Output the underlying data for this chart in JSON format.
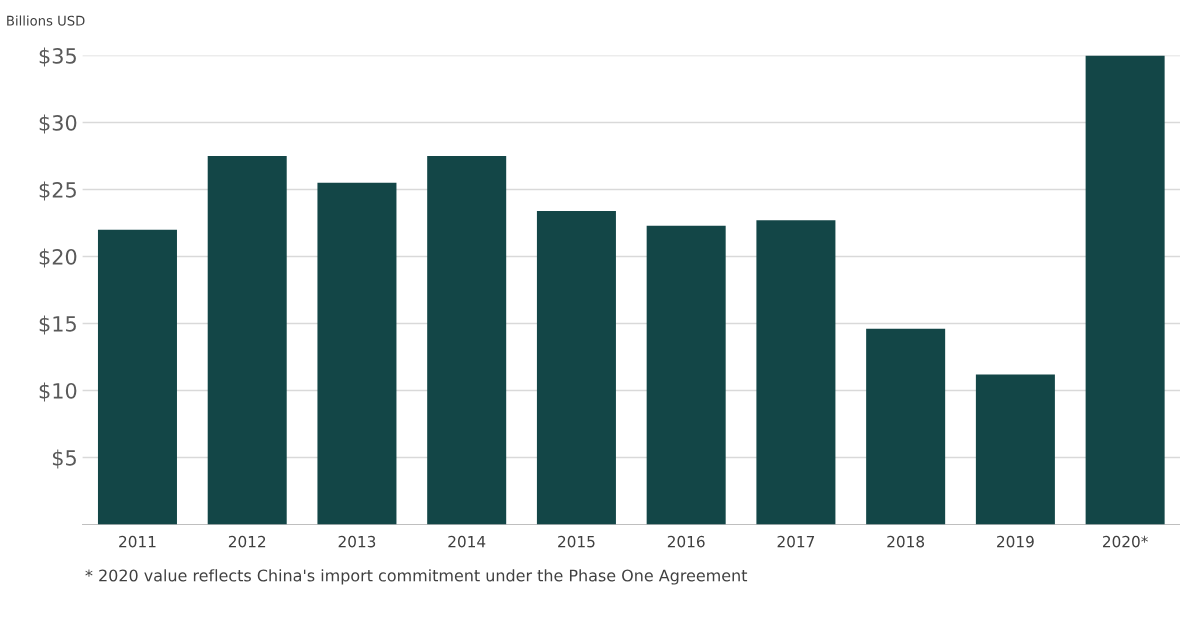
{
  "chart_data": {
    "type": "bar",
    "ylabel": "Billions USD",
    "categories": [
      "2011",
      "2012",
      "2013",
      "2014",
      "2015",
      "2016",
      "2017",
      "2018",
      "2019",
      "2020*"
    ],
    "values": [
      22.0,
      27.5,
      25.5,
      27.5,
      23.4,
      22.3,
      22.7,
      14.6,
      11.2,
      35.0
    ],
    "color": "#134647",
    "ylim": [
      0,
      35
    ],
    "yticks": [
      {
        "value": 5,
        "label": "$5"
      },
      {
        "value": 10,
        "label": "$10"
      },
      {
        "value": 15,
        "label": "$15"
      },
      {
        "value": 20,
        "label": "$20"
      },
      {
        "value": 25,
        "label": "$25"
      },
      {
        "value": 30,
        "label": "$30"
      },
      {
        "value": 35,
        "label": "$35"
      }
    ],
    "grid": "y",
    "annotations": [
      "* 2020 value reflects China's import commitment under the Phase One Agreement"
    ]
  }
}
